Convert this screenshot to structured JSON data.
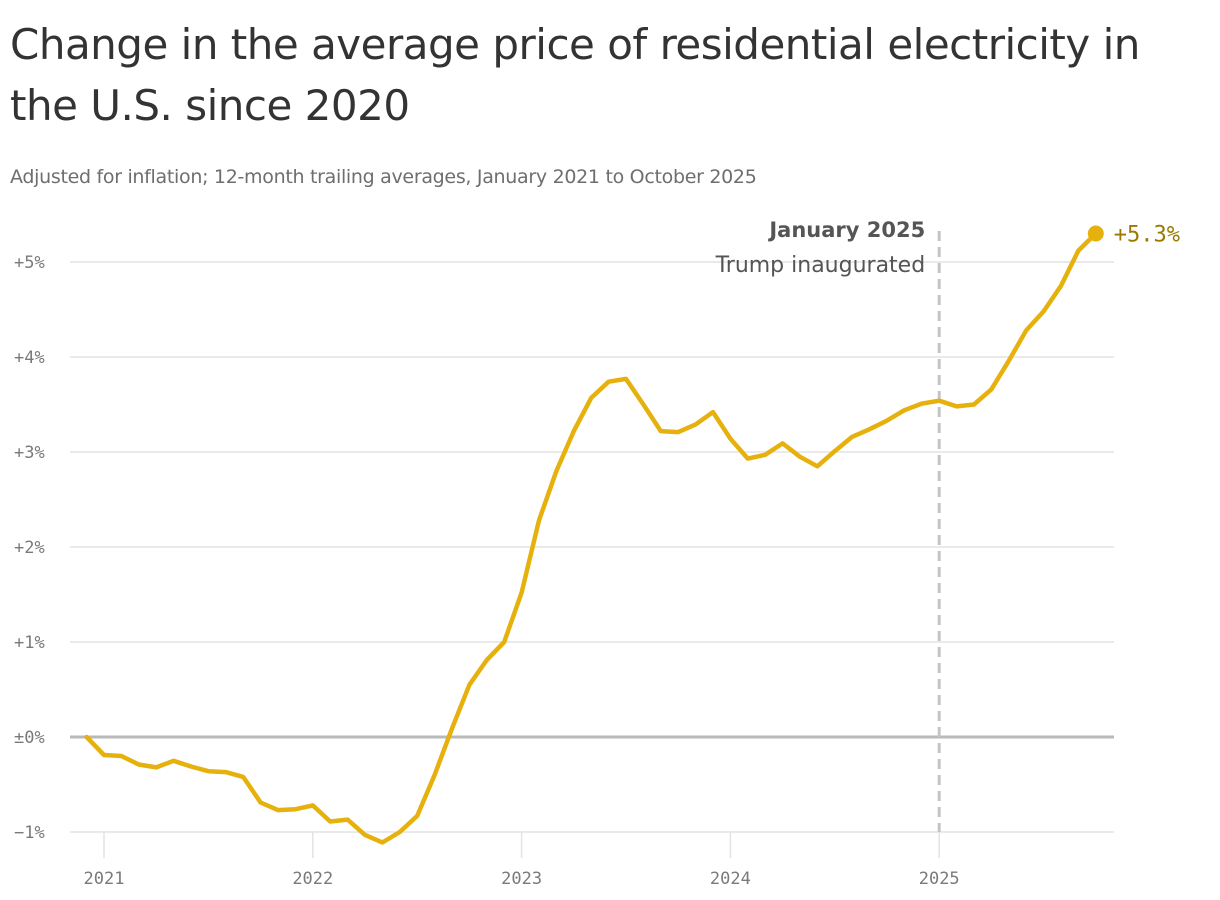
{
  "title": "Change in the average price of residential electricity in the U.S. since 2020",
  "subtitle": "Adjusted for inflation; 12-month trailing averages, January 2021 to October 2025",
  "colors": {
    "line": "#e6b10d",
    "grid": "#e3e3e3",
    "zero": "#b9b9b9",
    "annotation_line": "#c4c4c4",
    "end_label": "#9a7a00"
  },
  "chart_data": {
    "type": "line",
    "title": "Change in the average price of residential electricity in the U.S. since 2020",
    "subtitle": "Adjusted for inflation; 12-month trailing averages, January 2021 to October 2025",
    "xlabel": "",
    "ylabel": "",
    "ylim": [
      -1.0,
      5.5
    ],
    "xlim": [
      "2020-11",
      "2025-12"
    ],
    "grid": true,
    "y_ticks": [
      {
        "value": 5,
        "label": "+5%"
      },
      {
        "value": 4,
        "label": "+4%"
      },
      {
        "value": 3,
        "label": "+3%"
      },
      {
        "value": 2,
        "label": "+2%"
      },
      {
        "value": 1,
        "label": "+1%"
      },
      {
        "value": 0,
        "label": "±0%"
      },
      {
        "value": -1,
        "label": "−1%"
      }
    ],
    "x_ticks": [
      {
        "value": "2021-01",
        "label": "2021"
      },
      {
        "value": "2022-01",
        "label": "2022"
      },
      {
        "value": "2023-01",
        "label": "2023"
      },
      {
        "value": "2024-01",
        "label": "2024"
      },
      {
        "value": "2025-01",
        "label": "2025"
      }
    ],
    "series": [
      {
        "x": [
          "2020-12",
          "2021-01",
          "2021-02",
          "2021-03",
          "2021-04",
          "2021-05",
          "2021-06",
          "2021-07",
          "2021-08",
          "2021-09",
          "2021-10",
          "2021-11",
          "2021-12",
          "2022-01",
          "2022-02",
          "2022-03",
          "2022-04",
          "2022-05",
          "2022-06",
          "2022-07",
          "2022-08",
          "2022-09",
          "2022-10",
          "2022-11",
          "2022-12",
          "2023-01",
          "2023-02",
          "2023-03",
          "2023-04",
          "2023-05",
          "2023-06",
          "2023-07",
          "2023-08",
          "2023-09",
          "2023-10",
          "2023-11",
          "2023-12",
          "2024-01",
          "2024-02",
          "2024-03",
          "2024-04",
          "2024-05",
          "2024-06",
          "2024-07",
          "2024-08",
          "2024-09",
          "2024-10",
          "2024-11",
          "2024-12",
          "2025-01",
          "2025-02",
          "2025-03",
          "2025-04",
          "2025-05",
          "2025-06",
          "2025-07",
          "2025-08",
          "2025-09",
          "2025-10"
        ],
        "values": [
          0.0,
          -0.19,
          -0.2,
          -0.29,
          -0.32,
          -0.25,
          -0.31,
          -0.36,
          -0.37,
          -0.42,
          -0.69,
          -0.77,
          -0.76,
          -0.72,
          -0.89,
          -0.87,
          -1.03,
          -1.11,
          -1.0,
          -0.83,
          -0.4,
          0.09,
          0.55,
          0.81,
          1.0,
          1.52,
          2.28,
          2.8,
          3.22,
          3.57,
          3.74,
          3.77,
          3.5,
          3.22,
          3.21,
          3.29,
          3.42,
          3.14,
          2.93,
          2.97,
          3.09,
          2.95,
          2.85,
          3.01,
          3.16,
          3.24,
          3.33,
          3.44,
          3.51,
          3.54,
          3.48,
          3.5,
          3.66,
          3.96,
          4.28,
          4.48,
          4.75,
          5.12,
          5.3
        ]
      }
    ],
    "annotations": [
      {
        "x": "2025-01",
        "line1": "January 2025",
        "line2": "Trump inaugurated"
      }
    ],
    "end_label": "+5.3%"
  }
}
